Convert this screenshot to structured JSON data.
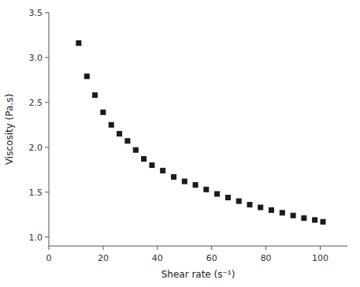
{
  "chart_data": {
    "type": "scatter",
    "x": [
      11,
      14,
      17,
      20,
      23,
      26,
      29,
      32,
      35,
      38,
      42,
      46,
      50,
      54,
      58,
      62,
      66,
      70,
      74,
      78,
      82,
      86,
      90,
      94,
      98,
      101
    ],
    "y": [
      3.16,
      2.79,
      2.58,
      2.39,
      2.25,
      2.15,
      2.07,
      1.97,
      1.87,
      1.8,
      1.74,
      1.67,
      1.62,
      1.58,
      1.53,
      1.48,
      1.44,
      1.4,
      1.36,
      1.33,
      1.3,
      1.27,
      1.24,
      1.21,
      1.19,
      1.17
    ],
    "xlabel": "Shear rate (s⁻¹)",
    "ylabel": "Viscosity (Pa.s)",
    "xlim": [
      0,
      110
    ],
    "ylim": [
      0.9,
      3.5
    ],
    "xticks": [
      0,
      20,
      40,
      60,
      80,
      100
    ],
    "yticks": [
      {
        "value": 1.0,
        "label": "1.0"
      },
      1.5,
      {
        "value": 2.0,
        "label": "2.0"
      },
      2.5,
      {
        "value": 3.0,
        "label": "3.0"
      },
      3.5
    ],
    "marker": "square",
    "color": "#1a1a1a",
    "grid": false
  }
}
